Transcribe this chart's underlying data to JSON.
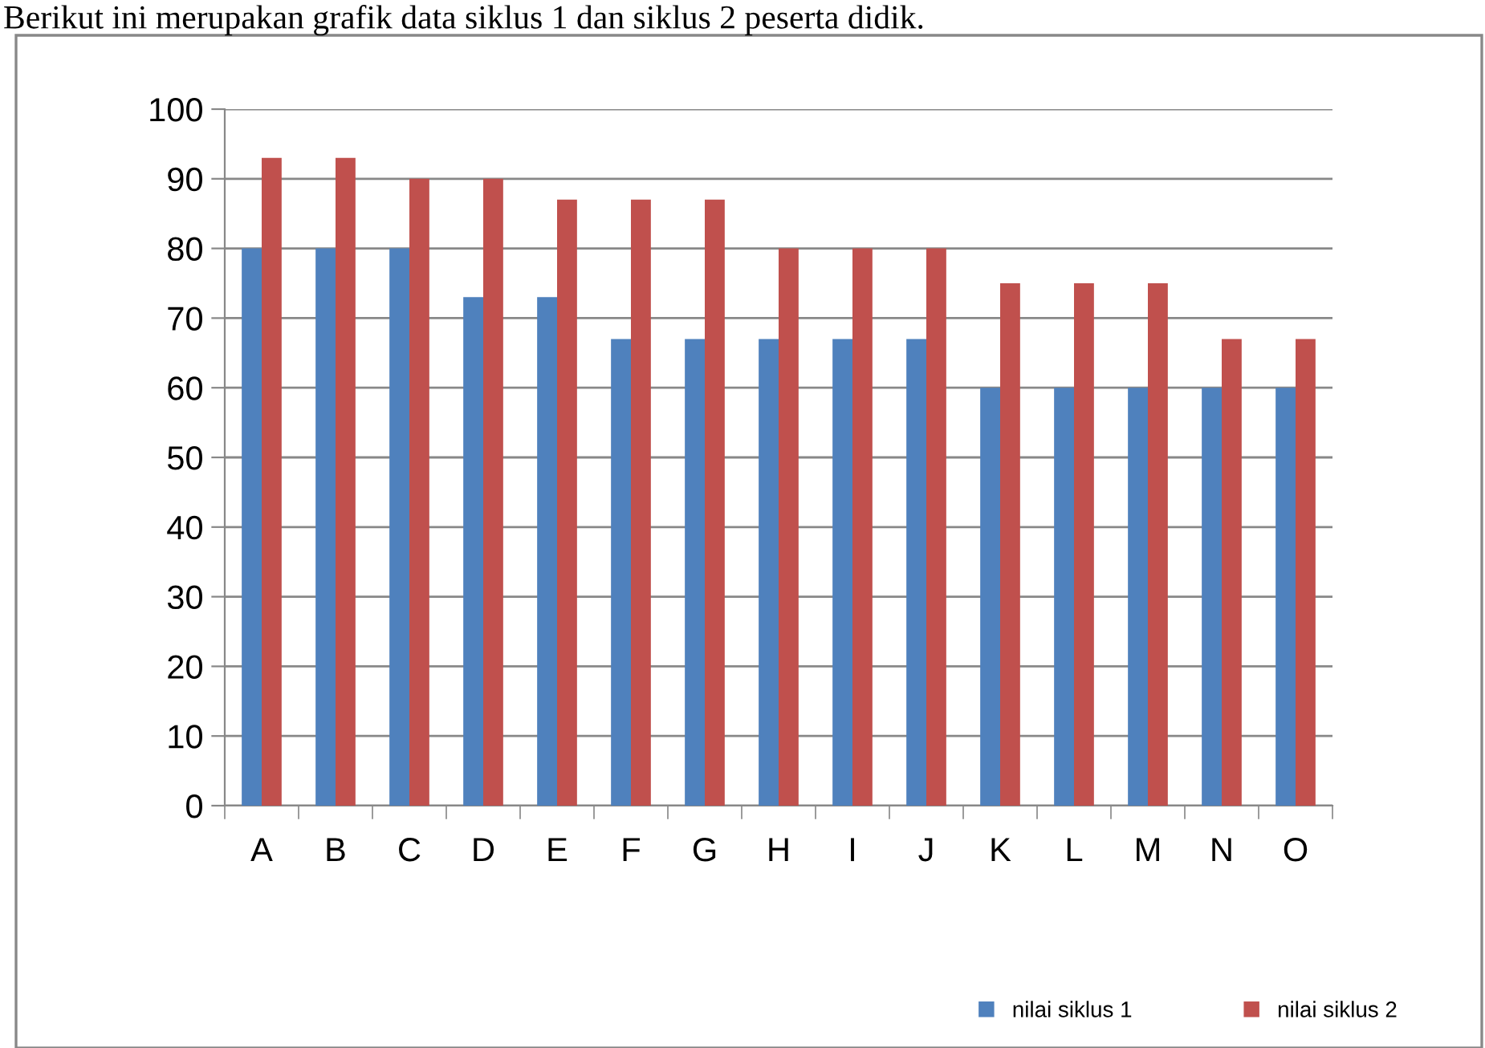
{
  "chart_data": {
    "type": "bar",
    "title": "Berikut ini merupakan grafik data siklus 1 dan siklus 2 peserta didik.",
    "categories": [
      "A",
      "B",
      "C",
      "D",
      "E",
      "F",
      "G",
      "H",
      "I",
      "J",
      "K",
      "L",
      "M",
      "N",
      "O"
    ],
    "series": [
      {
        "name": "nilai siklus 1",
        "color": "#4f81bd",
        "values": [
          80,
          80,
          80,
          73,
          73,
          67,
          67,
          67,
          67,
          67,
          60,
          60,
          60,
          60,
          60
        ]
      },
      {
        "name": "nilai siklus 2",
        "color": "#c0504d",
        "values": [
          93,
          93,
          90,
          90,
          87,
          87,
          87,
          80,
          80,
          80,
          75,
          75,
          75,
          67,
          67
        ]
      }
    ],
    "ylim": [
      0,
      100
    ],
    "yticks": [
      0,
      10,
      20,
      30,
      40,
      50,
      60,
      70,
      80,
      90,
      100
    ],
    "grid": "y",
    "legend": "bottom right"
  }
}
